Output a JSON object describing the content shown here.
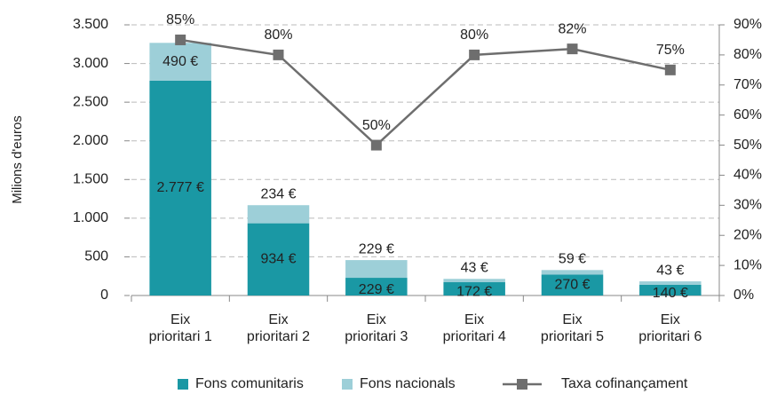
{
  "chart_data": {
    "type": "bar",
    "y_label": "Milions d'euros",
    "categories": [
      "Eix prioritari 1",
      "Eix prioritari 2",
      "Eix prioritari 3",
      "Eix prioritari 4",
      "Eix prioritari 5",
      "Eix prioritari 6"
    ],
    "series": [
      {
        "name": "Fons comunitaris",
        "color": "#1a98a4",
        "values": [
          2777,
          934,
          229,
          172,
          270,
          140
        ],
        "value_labels": [
          "2.777 €",
          "934 €",
          "229 €",
          "172 €",
          "270 €",
          "140 €"
        ]
      },
      {
        "name": "Fons nacionals",
        "color": "#9dcfd8",
        "values": [
          490,
          234,
          229,
          43,
          59,
          43
        ],
        "value_labels": [
          "490 €",
          "234 €",
          "229 €",
          "43 €",
          "59 €",
          "43 €"
        ]
      },
      {
        "name": "Taxa cofinançament",
        "type": "line",
        "axis": "y2",
        "color": "#6e6e6e",
        "values": [
          85,
          80,
          50,
          80,
          82,
          75
        ],
        "value_labels": [
          "85%",
          "80%",
          "50%",
          "80%",
          "82%",
          "75%"
        ]
      }
    ],
    "ylim": [
      0,
      3500
    ],
    "yticks": [
      0,
      500,
      {
        "value": 1000,
        "label": "1.000"
      },
      {
        "value": 1500,
        "label": "1.500"
      },
      {
        "value": 2000,
        "label": "2.000"
      },
      {
        "value": 2500,
        "label": "2.500"
      },
      {
        "value": 3000,
        "label": "3.000"
      },
      {
        "value": 3500,
        "label": "3.500"
      }
    ],
    "y2lim": [
      0,
      90
    ],
    "y2ticks": [
      {
        "value": 0,
        "label": "0%"
      },
      {
        "value": 10,
        "label": "10%"
      },
      {
        "value": 20,
        "label": "20%"
      },
      {
        "value": 30,
        "label": "30%"
      },
      {
        "value": 40,
        "label": "40%"
      },
      {
        "value": 50,
        "label": "50%"
      },
      {
        "value": 60,
        "label": "60%"
      },
      {
        "value": 70,
        "label": "70%"
      },
      {
        "value": 80,
        "label": "80%"
      },
      {
        "value": 90,
        "label": "90%"
      }
    ],
    "grid": true
  }
}
